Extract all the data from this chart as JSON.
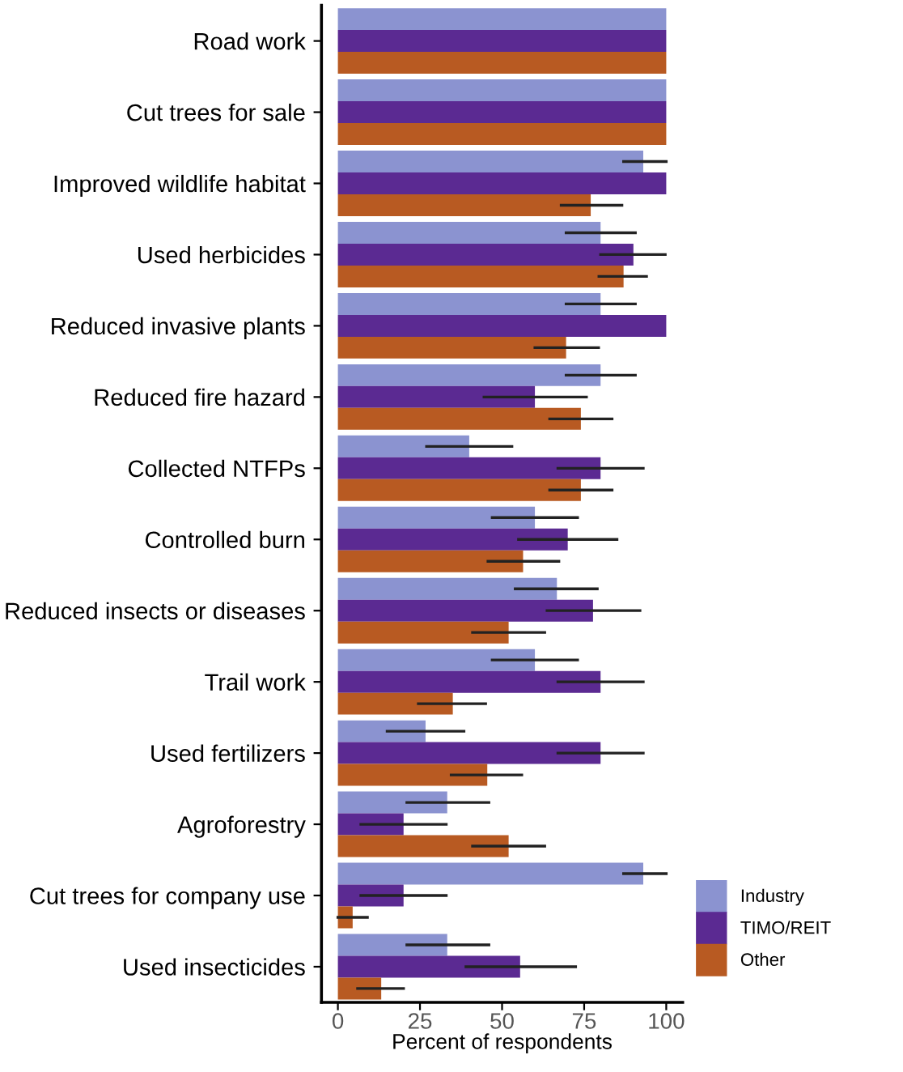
{
  "chart_data": {
    "type": "bar",
    "orientation": "horizontal",
    "xlabel": "Percent of respondents",
    "categories": [
      "Road work",
      "Cut trees for sale",
      "Improved wildlife habitat",
      "Used herbicides",
      "Reduced invasive plants",
      "Reduced fire hazard",
      "Collected NTFPs",
      "Controlled burn",
      "Reduced insects or diseases",
      "Trail work",
      "Used fertilizers",
      "Agroforestry",
      "Cut trees for company use",
      "Used insecticides"
    ],
    "xlim": [
      -5,
      105
    ],
    "xticks": [
      0,
      25,
      50,
      75,
      100
    ],
    "grid": false,
    "legend": "bottom right",
    "series": [
      {
        "name": "Industry",
        "color": "#8b93d0",
        "values": [
          100,
          100,
          93,
          80,
          80,
          80,
          40,
          60,
          66.7,
          60,
          26.7,
          33.3,
          93,
          33.3
        ],
        "errors": [
          null,
          null,
          [
            87,
            100
          ],
          [
            69.5,
            90.6
          ],
          [
            69.5,
            90.6
          ],
          [
            69.5,
            90.6
          ],
          [
            27,
            53
          ],
          [
            47,
            73
          ],
          [
            54,
            79
          ],
          [
            47,
            73
          ],
          [
            15,
            38.4
          ],
          [
            21,
            46
          ],
          [
            87,
            100
          ],
          [
            21,
            46
          ]
        ]
      },
      {
        "name": "TIMO/REIT",
        "color": "#5b2a92",
        "values": [
          100,
          100,
          100,
          90,
          100,
          60,
          80,
          70,
          77.7,
          80,
          80,
          20,
          20,
          55.5
        ],
        "errors": [
          null,
          null,
          null,
          [
            80,
            99.7
          ],
          null,
          [
            44.5,
            75.7
          ],
          [
            67,
            93
          ],
          [
            55,
            85
          ],
          [
            63.7,
            92
          ],
          [
            67,
            93
          ],
          [
            67,
            93
          ],
          [
            7,
            33
          ],
          [
            7,
            33
          ],
          [
            39,
            72.4
          ]
        ]
      },
      {
        "name": "Other",
        "color": "#b85a22",
        "values": [
          100,
          100,
          77,
          87,
          69.5,
          74,
          74,
          56.4,
          52,
          35,
          45.5,
          52,
          4.5,
          13.2
        ],
        "errors": [
          null,
          null,
          [
            68,
            86.5
          ],
          [
            79.5,
            94
          ],
          [
            60,
            79.4
          ],
          [
            64.5,
            83.5
          ],
          [
            64.5,
            83.5
          ],
          [
            45.7,
            67.3
          ],
          [
            41,
            63
          ],
          [
            24.5,
            45
          ],
          [
            34.5,
            56
          ],
          [
            41,
            63
          ],
          [
            0,
            9
          ],
          [
            6,
            20
          ]
        ]
      }
    ]
  }
}
